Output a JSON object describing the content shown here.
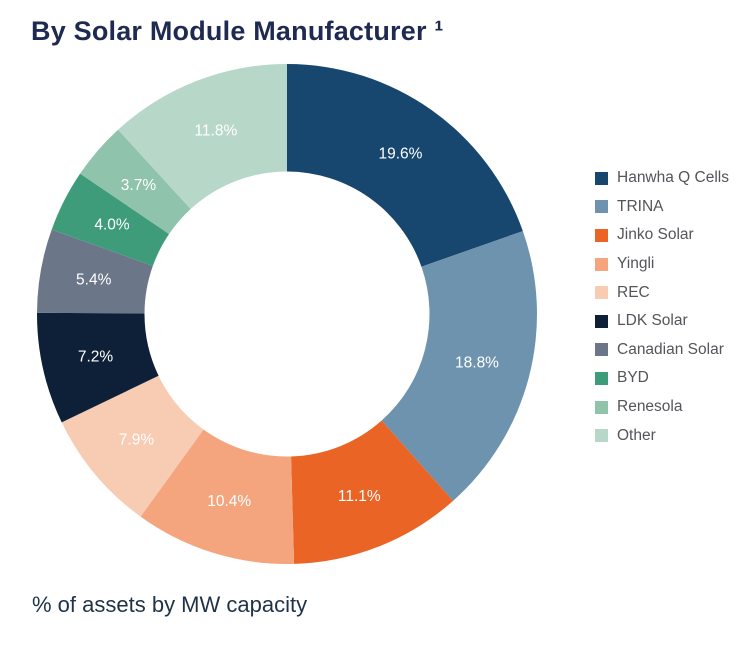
{
  "header": {
    "title": "By Solar Module Manufacturer ¹"
  },
  "footer": {
    "caption": "% of assets by MW capacity"
  },
  "chart_data": {
    "type": "pie",
    "subtype": "donut",
    "title": "By Solar Module Manufacturer ¹",
    "caption": "% of assets by MW capacity",
    "categories": [
      "Hanwha Q Cells",
      "TRINA",
      "Jinko Solar",
      "Yingli",
      "REC",
      "LDK Solar",
      "Canadian Solar",
      "BYD",
      "Renesola",
      "Other"
    ],
    "values": [
      19.6,
      18.8,
      11.1,
      10.4,
      7.9,
      7.2,
      5.4,
      4.0,
      3.7,
      11.8
    ],
    "labels": [
      "19.6%",
      "18.8%",
      "11.1%",
      "10.4%",
      "7.9%",
      "7.2%",
      "5.4%",
      "4.0%",
      "3.7%",
      "11.8%"
    ],
    "colors": [
      "#17476F",
      "#6E93AF",
      "#EA6426",
      "#F5A57E",
      "#F8CBB3",
      "#0E2038",
      "#6B7789",
      "#3E9C7B",
      "#8FC3AB",
      "#B7D8C8"
    ],
    "label_color": "#FFFFFF",
    "start_angle_deg": 0,
    "direction": "clockwise",
    "inner_radius_ratio": 0.57,
    "legend_position": "right",
    "legend_text_color": "#54555A",
    "title_color": "#1F2A52",
    "caption_color": "#1F3348"
  }
}
